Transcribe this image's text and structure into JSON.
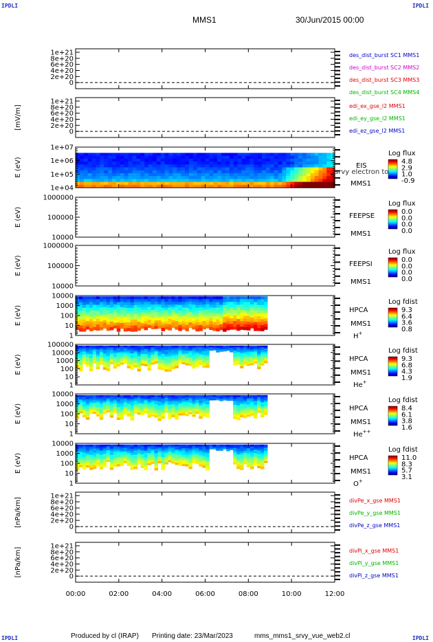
{
  "corners": {
    "tl": "IPDLI",
    "tr": "IPDLI",
    "bl": "IPDLI",
    "br": "IPDLI"
  },
  "header": {
    "mission": "MMS1",
    "date": "30/Jun/2015 00:00"
  },
  "footer": {
    "producer": "Produced by cl (IRAP)",
    "printing": "Printing date: 23/Mar/2023",
    "file": "mms_mms1_srvy_vue_web2.cl"
  },
  "colors": {
    "blue": "#0000c8",
    "red": "#e00000",
    "green": "#00b400",
    "magenta": "#d000d0"
  },
  "chart_data": {
    "type": "stacked-timeseries",
    "x_ticks": [
      "00:00",
      "02:00",
      "04:00",
      "06:00",
      "08:00",
      "10:00",
      "12:00"
    ],
    "panels": [
      {
        "kind": "line",
        "ylabel": "",
        "yticks": [
          "1e+21",
          "8e+20",
          "6e+20",
          "4e+20",
          "2e+20",
          "0"
        ],
        "legend": [
          {
            "text": "des_dist_burst SC1 MMS1",
            "color": "blue"
          },
          {
            "text": "des_dist_burst SC2 MMS2",
            "color": "magenta"
          },
          {
            "text": "des_dist_burst SC3 MMS3",
            "color": "red"
          },
          {
            "text": "des_dist_burst SC4 MMS4",
            "color": "green"
          }
        ]
      },
      {
        "kind": "line",
        "ylabel": "[mV/m]",
        "yticks": [
          "1e+21",
          "8e+20",
          "6e+20",
          "4e+20",
          "2e+20",
          "0"
        ],
        "legend": [
          {
            "text": "edi_ex_gse_l2 MMS1",
            "color": "red"
          },
          {
            "text": "edi_ey_gse_l2 MMS1",
            "color": "green"
          },
          {
            "text": "edi_ez_gse_l2 MMS1",
            "color": "blue"
          }
        ]
      },
      {
        "kind": "spec",
        "ylabel": "E (eV)",
        "yticks": [
          "1e+07",
          "1e+06",
          "1e+05",
          "1e+04"
        ],
        "labels": [
          "EIS",
          "MMS1"
        ],
        "overlay": "srvy electron to",
        "cbar_title": "Log flux",
        "cbar_ticks": [
          "4.8",
          "2.9",
          "1.0",
          "-0.9"
        ]
      },
      {
        "kind": "empty",
        "ylabel": "E (eV)",
        "yticks": [
          "1000000",
          "100000",
          "10000"
        ],
        "labels": [
          "FEEPSE",
          "MMS1"
        ],
        "cbar_title": "Log flux",
        "cbar_ticks": [
          "0.0",
          "0.0",
          "0.0",
          "0.0"
        ]
      },
      {
        "kind": "empty",
        "ylabel": "E (eV)",
        "yticks": [
          "1000000",
          "100000",
          "10000"
        ],
        "labels": [
          "FEEPSI",
          "MMS1"
        ],
        "cbar_title": "Log flux",
        "cbar_ticks": [
          "0.0",
          "0.0",
          "0.0",
          "0.0"
        ]
      },
      {
        "kind": "hpca",
        "ylabel": "E (eV)",
        "yticks": [
          "10000",
          "1000",
          "100",
          "10",
          "1"
        ],
        "labels": [
          "HPCA",
          "MMS1"
        ],
        "species": "H",
        "sup": "+",
        "cbar_title": "Log fdist",
        "cbar_ticks": [
          "9.3",
          "6.4",
          "3.6",
          "0.8"
        ]
      },
      {
        "kind": "hpca",
        "ylabel": "E (eV)",
        "yticks": [
          "100000",
          "10000",
          "1000",
          "100",
          "10",
          "1"
        ],
        "labels": [
          "HPCA",
          "MMS1"
        ],
        "species": "He",
        "sup": "+",
        "cbar_title": "Log fdist",
        "cbar_ticks": [
          "9.3",
          "6.8",
          "4.3",
          "1.9"
        ]
      },
      {
        "kind": "hpca",
        "ylabel": "E (eV)",
        "yticks": [
          "10000",
          "1000",
          "100",
          "10",
          "1"
        ],
        "labels": [
          "HPCA",
          "MMS1"
        ],
        "species": "He",
        "sup": "++",
        "cbar_title": "Log fdist",
        "cbar_ticks": [
          "8.4",
          "6.1",
          "3.8",
          "1.6"
        ]
      },
      {
        "kind": "hpca",
        "ylabel": "E (eV)",
        "yticks": [
          "10000",
          "1000",
          "100",
          "10",
          "1"
        ],
        "labels": [
          "HPCA",
          "MMS1"
        ],
        "species": "O",
        "sup": "+",
        "cbar_title": "Log fdist",
        "cbar_ticks": [
          "11.0",
          "8.3",
          "5.7",
          "3.1"
        ]
      },
      {
        "kind": "line",
        "ylabel": "[nPa/km]",
        "yticks": [
          "1e+21",
          "8e+20",
          "6e+20",
          "4e+20",
          "2e+20",
          "0"
        ],
        "legend": [
          {
            "text": "divPe_x_gse MMS1",
            "color": "red"
          },
          {
            "text": "divPe_y_gse MMS1",
            "color": "green"
          },
          {
            "text": "divPe_z_gse MMS1",
            "color": "blue"
          }
        ]
      },
      {
        "kind": "line",
        "ylabel": "[nPa/km]",
        "yticks": [
          "1e+21",
          "8e+20",
          "6e+20",
          "4e+20",
          "2e+20",
          "0"
        ],
        "legend": [
          {
            "text": "divPi_x_gse MMS1",
            "color": "red"
          },
          {
            "text": "divPi_y_gse MMS1",
            "color": "green"
          },
          {
            "text": "divPi_z_gse MMS1",
            "color": "blue"
          }
        ]
      }
    ]
  }
}
